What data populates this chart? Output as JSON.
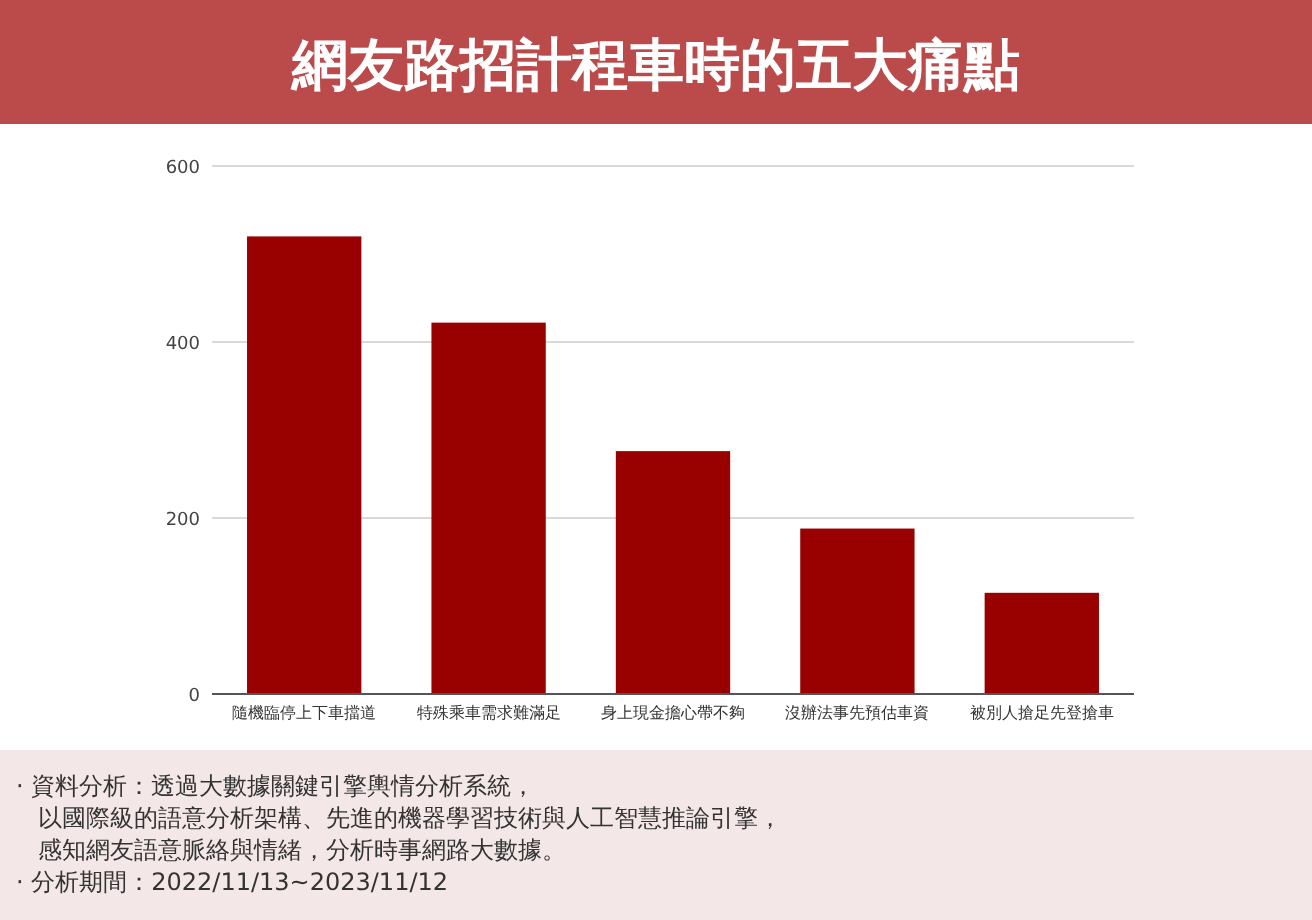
{
  "chart_data": {
    "type": "bar",
    "title": "網友路招計程車時的五大痛點",
    "categories": [
      "隨機臨停上下車擋道",
      "特殊乘車需求難滿足",
      "身上現金擔心帶不夠",
      "沒辦法事先預估車資",
      "被別人搶足先登搶車"
    ],
    "values": [
      520,
      422,
      276,
      188,
      115
    ],
    "color": "#990000",
    "ylim": [
      0,
      600
    ],
    "yticks": [
      0,
      200,
      400,
      600
    ],
    "grid": "y",
    "annotations": [
      "· 資料分析：透過大數據關鍵引擎輿情分析系統，",
      "以國際級的語意分析架構、先進的機器學習技術與人工智慧推論引擎，",
      "感知網友語意脈絡與情緒，分析時事網路大數據。",
      "· 分析期間：2022/11/13~2023/11/12"
    ]
  }
}
